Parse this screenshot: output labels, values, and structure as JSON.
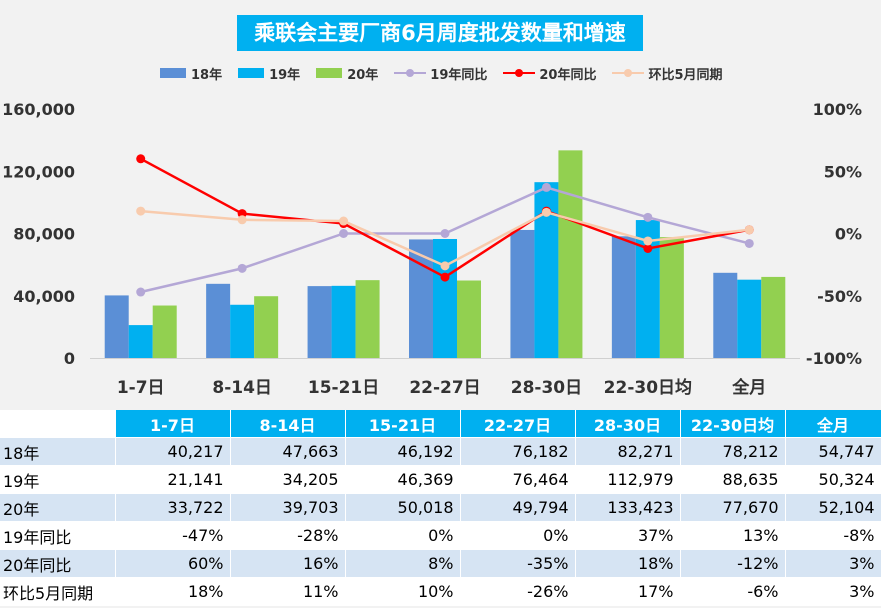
{
  "chart_data": {
    "type": "bar",
    "title": "乘联会主要厂商6月周度批发数量和增速",
    "categories": [
      "1-7日",
      "8-14日",
      "15-21日",
      "22-27日",
      "28-30日",
      "22-30日均",
      "全月"
    ],
    "series": [
      {
        "name": "18年",
        "type": "bar",
        "color": "#5b8fd6",
        "values": [
          40217,
          47663,
          46192,
          76182,
          82271,
          78212,
          54747
        ]
      },
      {
        "name": "19年",
        "type": "bar",
        "color": "#00b0f0",
        "values": [
          21141,
          34205,
          46369,
          76464,
          112979,
          88635,
          50324
        ]
      },
      {
        "name": "20年",
        "type": "bar",
        "color": "#92d050",
        "values": [
          33722,
          39703,
          50018,
          49794,
          133423,
          77670,
          52104
        ]
      },
      {
        "name": "19年同比",
        "type": "line",
        "axis": "right",
        "color": "#b4a7d6",
        "values": [
          -47,
          -28,
          0,
          0,
          37,
          13,
          -8
        ]
      },
      {
        "name": "20年同比",
        "type": "line",
        "axis": "right",
        "color": "#ff0000",
        "values": [
          60,
          16,
          8,
          -35,
          18,
          -12,
          3
        ]
      },
      {
        "name": "环比5月同期",
        "type": "line",
        "axis": "right",
        "color": "#f8cbad",
        "values": [
          18,
          11,
          10,
          -26,
          17,
          -6,
          3
        ]
      }
    ],
    "y_left": {
      "min": 0,
      "max": 160000,
      "ticks": [
        "0",
        "40,000",
        "80,000",
        "120,000",
        "160,000"
      ]
    },
    "y_right": {
      "min": -100,
      "max": 100,
      "ticks": [
        "-100%",
        "-50%",
        "0%",
        "50%",
        "100%"
      ]
    },
    "legend_position": "top",
    "grid": false
  },
  "table": {
    "headers": [
      "1-7日",
      "8-14日",
      "15-21日",
      "22-27日",
      "28-30日",
      "22-30日均",
      "全月"
    ],
    "rows": [
      {
        "label": "18年",
        "cells": [
          "40,217",
          "47,663",
          "46,192",
          "76,182",
          "82,271",
          "78,212",
          "54,747"
        ]
      },
      {
        "label": "19年",
        "cells": [
          "21,141",
          "34,205",
          "46,369",
          "76,464",
          "112,979",
          "88,635",
          "50,324"
        ]
      },
      {
        "label": "20年",
        "cells": [
          "33,722",
          "39,703",
          "50,018",
          "49,794",
          "133,423",
          "77,670",
          "52,104"
        ]
      },
      {
        "label": "19年同比",
        "cells": [
          "-47%",
          "-28%",
          "0%",
          "0%",
          "37%",
          "13%",
          "-8%"
        ]
      },
      {
        "label": "20年同比",
        "cells": [
          "60%",
          "16%",
          "8%",
          "-35%",
          "18%",
          "-12%",
          "3%"
        ]
      },
      {
        "label": "环比5月同期",
        "cells": [
          "18%",
          "11%",
          "10%",
          "-26%",
          "17%",
          "-6%",
          "3%"
        ]
      }
    ]
  }
}
